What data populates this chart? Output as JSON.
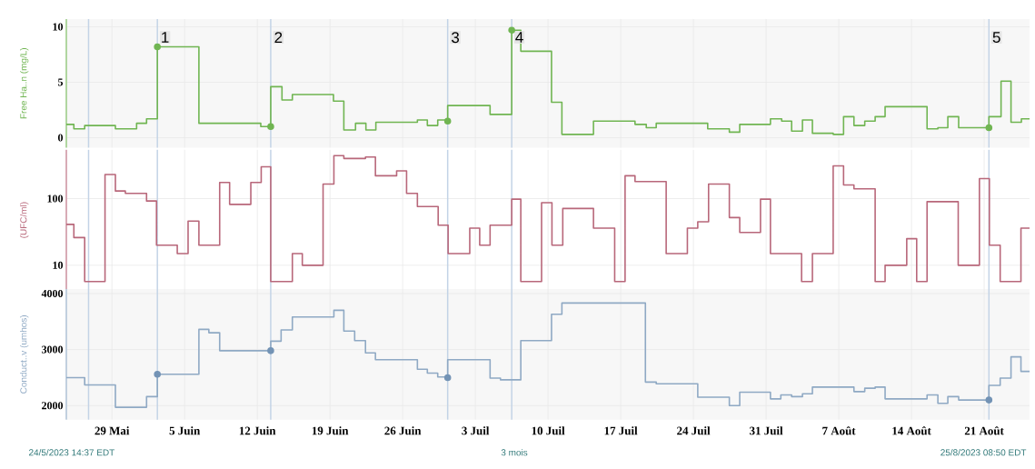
{
  "chart_data": [
    {
      "type": "step",
      "ylabel": "Free Ha..n (mg/L)",
      "xlim": [
        "2023-05-24T14:37",
        "2023-08-25T08:50"
      ],
      "ylim": [
        -0.9,
        10.7
      ],
      "yticks": [
        0,
        5,
        10
      ],
      "grid": true,
      "tick_labels": "y",
      "xticks": [
        {
          "value": "2023-05-29",
          "label": null
        },
        {
          "value": "2023-06-05",
          "label": null
        },
        {
          "value": "2023-06-12",
          "label": null
        },
        {
          "value": "2023-06-19",
          "label": null
        },
        {
          "value": "2023-06-26",
          "label": null
        },
        {
          "value": "2023-07-03",
          "label": null
        },
        {
          "value": "2023-07-10",
          "label": null
        },
        {
          "value": "2023-07-17",
          "label": null
        },
        {
          "value": "2023-07-24",
          "label": null
        },
        {
          "value": "2023-07-31",
          "label": null
        },
        {
          "value": "2023-08-07",
          "label": null
        },
        {
          "value": "2023-08-14",
          "label": null
        },
        {
          "value": "2023-08-21",
          "label": null
        }
      ],
      "ref_lines": [
        {
          "axis": "x",
          "value": "2023-05-26T18:00",
          "color": "#c3d3e6"
        },
        {
          "axis": "x",
          "value": "2023-06-02T09:00",
          "label": "1",
          "color": "#c3d3e6"
        },
        {
          "axis": "x",
          "value": "2023-06-13T07:00",
          "label": "2",
          "color": "#c3d3e6"
        },
        {
          "axis": "x",
          "value": "2023-06-30T08:00",
          "label": "3",
          "color": "#c3d3e6"
        },
        {
          "axis": "x",
          "value": "2023-07-06T12:00",
          "label": "4",
          "color": "#c3d3e6"
        },
        {
          "axis": "x",
          "value": "2023-08-21T11:00",
          "label": "5",
          "color": "#c3d3e6"
        }
      ],
      "series": [
        {
          "color": "#70b552",
          "x": [
            "2023-05-24T14:37",
            "2023-05-25T08:00",
            "2023-05-26T09:00",
            "2023-05-29T08:00",
            "2023-05-31T09:00",
            "2023-06-01T08:00",
            "2023-06-02T09:00",
            "2023-06-06T09:00",
            "2023-06-12T08:00",
            "2023-06-13T07:00",
            "2023-06-14T09:00",
            "2023-06-15T09:00",
            "2023-06-19T08:00",
            "2023-06-20T08:00",
            "2023-06-21T11:00",
            "2023-06-22T11:00",
            "2023-06-23T10:00",
            "2023-06-27T10:00",
            "2023-06-28T09:00",
            "2023-06-29T09:00",
            "2023-06-30T08:00",
            "2023-07-04T10:00",
            "2023-07-06T12:00",
            "2023-07-07T09:00",
            "2023-07-10T08:00",
            "2023-07-11T08:00",
            "2023-07-14T09:00",
            "2023-07-18T09:00",
            "2023-07-19T11:00",
            "2023-07-20T10:00",
            "2023-07-25T09:00",
            "2023-07-27T11:00",
            "2023-07-28T11:00",
            "2023-07-31T10:00",
            "2023-08-01T12:00",
            "2023-08-02T11:00",
            "2023-08-03T12:00",
            "2023-08-04T11:00",
            "2023-08-06T11:00",
            "2023-08-07T11:00",
            "2023-08-08T11:00",
            "2023-08-09T12:00",
            "2023-08-10T12:00",
            "2023-08-11T11:00",
            "2023-08-15T12:00",
            "2023-08-16T13:00",
            "2023-08-17T12:00",
            "2023-08-18T13:00",
            "2023-08-21T11:00",
            "2023-08-22T15:00",
            "2023-08-23T14:00",
            "2023-08-24T14:00",
            "2023-08-25T08:50"
          ],
          "values": [
            1.2,
            0.8,
            1.1,
            0.8,
            1.3,
            1.7,
            8.2,
            1.3,
            1.0,
            4.6,
            3.4,
            3.9,
            3.3,
            0.7,
            1.3,
            0.7,
            1.4,
            1.6,
            1.1,
            1.6,
            2.9,
            2.1,
            9.7,
            7.8,
            3.2,
            0.3,
            1.5,
            1.2,
            0.9,
            1.3,
            0.8,
            0.5,
            1.2,
            1.7,
            1.5,
            0.6,
            1.6,
            0.4,
            0.3,
            1.9,
            1.1,
            1.5,
            1.9,
            2.8,
            0.8,
            0.9,
            1.9,
            0.9,
            1.9,
            5.1,
            1.4,
            1.7,
            1.7
          ]
        },
        {
          "type": "scatter",
          "marker": "circle",
          "color": "#70b552",
          "x": [
            "2023-06-02T09:00",
            "2023-06-13T07:00",
            "2023-06-30T08:00",
            "2023-07-06T12:00",
            "2023-08-21T11:00"
          ],
          "values": [
            8.2,
            1.0,
            1.5,
            9.7,
            0.9
          ]
        }
      ]
    },
    {
      "type": "step",
      "ylabel": "(UFC/ml)",
      "xlim": [
        "2023-05-24T14:37",
        "2023-08-25T08:50"
      ],
      "ylim": [
        4.2,
        540
      ],
      "log": "y",
      "yticks": [
        10,
        100
      ],
      "grid": true,
      "tick_labels": "y",
      "xticks": [
        {
          "value": "2023-05-29",
          "label": null
        },
        {
          "value": "2023-06-05",
          "label": null
        },
        {
          "value": "2023-06-12",
          "label": null
        },
        {
          "value": "2023-06-19",
          "label": null
        },
        {
          "value": "2023-06-26",
          "label": null
        },
        {
          "value": "2023-07-03",
          "label": null
        },
        {
          "value": "2023-07-10",
          "label": null
        },
        {
          "value": "2023-07-17",
          "label": null
        },
        {
          "value": "2023-07-24",
          "label": null
        },
        {
          "value": "2023-07-31",
          "label": null
        },
        {
          "value": "2023-08-07",
          "label": null
        },
        {
          "value": "2023-08-14",
          "label": null
        },
        {
          "value": "2023-08-21",
          "label": null
        }
      ],
      "ref_lines": [
        {
          "axis": "x",
          "value": "2023-05-26T18:00",
          "color": "#c3d3e6"
        },
        {
          "axis": "x",
          "value": "2023-06-02T09:00",
          "color": "#c3d3e6"
        },
        {
          "axis": "x",
          "value": "2023-06-13T07:00",
          "color": "#c3d3e6"
        },
        {
          "axis": "x",
          "value": "2023-06-30T08:00",
          "color": "#c3d3e6"
        },
        {
          "axis": "x",
          "value": "2023-07-06T12:00",
          "color": "#c3d3e6"
        },
        {
          "axis": "x",
          "value": "2023-08-21T11:00",
          "color": "#c3d3e6"
        }
      ],
      "series": [
        {
          "color": "#b8677a",
          "x": [
            "2023-05-24T14:37",
            "2023-05-25T08:00",
            "2023-05-26T09:00",
            "2023-05-28T08:00",
            "2023-05-29T08:00",
            "2023-05-30T07:00",
            "2023-06-01T08:00",
            "2023-06-02T07:00",
            "2023-06-04T07:00",
            "2023-06-05T08:00",
            "2023-06-06T09:00",
            "2023-06-08T09:00",
            "2023-06-09T08:00",
            "2023-06-11T09:00",
            "2023-06-12T09:00",
            "2023-06-13T07:00",
            "2023-06-15T09:00",
            "2023-06-16T08:00",
            "2023-06-18T08:00",
            "2023-06-19T09:00",
            "2023-06-20T08:00",
            "2023-06-22T10:00",
            "2023-06-23T09:00",
            "2023-06-25T10:00",
            "2023-06-26T09:00",
            "2023-06-27T10:00",
            "2023-06-29T10:00",
            "2023-06-30T09:00",
            "2023-07-02T11:00",
            "2023-07-03T10:00",
            "2023-07-04T10:00",
            "2023-07-06T12:00",
            "2023-07-07T09:00",
            "2023-07-09T09:00",
            "2023-07-10T09:00",
            "2023-07-11T10:00",
            "2023-07-14T09:00",
            "2023-07-16T10:00",
            "2023-07-17T10:00",
            "2023-07-18T09:00",
            "2023-07-21T09:00",
            "2023-07-23T10:00",
            "2023-07-24T10:00",
            "2023-07-25T11:00",
            "2023-07-27T11:00",
            "2023-07-28T11:00",
            "2023-07-30T11:00",
            "2023-07-31T10:00",
            "2023-08-03T10:00",
            "2023-08-04T11:00",
            "2023-08-06T11:00",
            "2023-08-07T11:00",
            "2023-08-08T11:00",
            "2023-08-10T12:00",
            "2023-08-11T11:00",
            "2023-08-13T13:00",
            "2023-08-14T12:00",
            "2023-08-15T12:00",
            "2023-08-18T12:00",
            "2023-08-20T13:00",
            "2023-08-21T12:00",
            "2023-08-22T13:00",
            "2023-08-24T13:00",
            "2023-08-25T08:50"
          ],
          "values": [
            41,
            26,
            5.7,
            230,
            130,
            120,
            92,
            20,
            15,
            46,
            20,
            175,
            82,
            175,
            300,
            5.7,
            15,
            10,
            165,
            440,
            400,
            420,
            220,
            260,
            120,
            76,
            40,
            15,
            36,
            20,
            40,
            98,
            5.7,
            87,
            20,
            71,
            36,
            5.7,
            220,
            180,
            15,
            36,
            45,
            165,
            52,
            31,
            98,
            15,
            5.7,
            15,
            310,
            160,
            140,
            5.7,
            10,
            25,
            5.7,
            90,
            10,
            200,
            20,
            5.7,
            36,
            36
          ]
        }
      ]
    },
    {
      "type": "step",
      "ylabel": "Conduct..v (umhos)",
      "xlim": [
        "2023-05-24T14:37",
        "2023-08-25T08:50"
      ],
      "ylim": [
        1750,
        4080
      ],
      "yticks": [
        2000,
        3000,
        4000
      ],
      "grid": true,
      "xticks": [
        {
          "value": "2023-05-29",
          "label": "29 Mai"
        },
        {
          "value": "2023-06-05",
          "label": "5 Juin"
        },
        {
          "value": "2023-06-12",
          "label": "12 Juin"
        },
        {
          "value": "2023-06-19",
          "label": "19 Juin"
        },
        {
          "value": "2023-06-26",
          "label": "26 Juin"
        },
        {
          "value": "2023-07-03",
          "label": "3 Juil"
        },
        {
          "value": "2023-07-10",
          "label": "10 Juil"
        },
        {
          "value": "2023-07-17",
          "label": "17 Juil"
        },
        {
          "value": "2023-07-24",
          "label": "24 Juil"
        },
        {
          "value": "2023-07-31",
          "label": "31 Juil"
        },
        {
          "value": "2023-08-07",
          "label": "7 Août"
        },
        {
          "value": "2023-08-14",
          "label": "14 Août"
        },
        {
          "value": "2023-08-21",
          "label": "21 Août"
        }
      ],
      "ref_lines": [
        {
          "axis": "x",
          "value": "2023-05-26T18:00",
          "color": "#c3d3e6"
        },
        {
          "axis": "x",
          "value": "2023-06-02T09:00",
          "color": "#c3d3e6"
        },
        {
          "axis": "x",
          "value": "2023-06-13T07:00",
          "color": "#c3d3e6"
        },
        {
          "axis": "x",
          "value": "2023-06-30T08:00",
          "color": "#c3d3e6"
        },
        {
          "axis": "x",
          "value": "2023-07-06T12:00",
          "color": "#c3d3e6"
        },
        {
          "axis": "x",
          "value": "2023-08-21T11:00",
          "color": "#c3d3e6"
        }
      ],
      "annotations": [
        "24/5/2023 14:37 EDT",
        "3 mois",
        "25/8/2023 08:50 EDT"
      ],
      "series": [
        {
          "color": "#8fa9c4",
          "x": [
            "2023-05-24T14:37",
            "2023-05-26T09:00",
            "2023-05-29T08:00",
            "2023-06-01T08:00",
            "2023-06-02T09:00",
            "2023-06-06T09:00",
            "2023-06-07T08:00",
            "2023-06-08T09:00",
            "2023-06-13T07:00",
            "2023-06-14T07:00",
            "2023-06-15T09:00",
            "2023-06-19T09:00",
            "2023-06-20T08:00",
            "2023-06-21T09:00",
            "2023-06-22T10:00",
            "2023-06-23T09:00",
            "2023-06-27T10:00",
            "2023-06-28T09:00",
            "2023-06-29T09:00",
            "2023-06-30T08:00",
            "2023-07-04T10:00",
            "2023-07-05T10:00",
            "2023-07-07T09:00",
            "2023-07-10T08:00",
            "2023-07-11T08:00",
            "2023-07-19T09:00",
            "2023-07-20T10:00",
            "2023-07-24T10:00",
            "2023-07-27T11:00",
            "2023-07-28T11:00",
            "2023-07-31T10:00",
            "2023-08-01T10:00",
            "2023-08-02T11:00",
            "2023-08-03T12:00",
            "2023-08-04T11:00",
            "2023-08-08T11:00",
            "2023-08-09T12:00",
            "2023-08-10T12:00",
            "2023-08-11T11:00",
            "2023-08-15T12:00",
            "2023-08-16T13:00",
            "2023-08-17T12:00",
            "2023-08-18T13:00",
            "2023-08-21T11:00",
            "2023-08-22T13:00",
            "2023-08-23T14:00",
            "2023-08-24T13:00",
            "2023-08-25T08:50"
          ],
          "values": [
            2500,
            2370,
            1970,
            2160,
            2560,
            3360,
            3300,
            2980,
            3150,
            3350,
            3580,
            3700,
            3330,
            3160,
            2940,
            2820,
            2650,
            2580,
            2510,
            2820,
            2490,
            2460,
            3160,
            3630,
            3830,
            2420,
            2390,
            2150,
            2000,
            2240,
            2120,
            2190,
            2160,
            2210,
            2330,
            2250,
            2310,
            2330,
            2120,
            2190,
            2040,
            2160,
            2100,
            2360,
            2490,
            2870,
            2610,
            2610
          ]
        },
        {
          "type": "scatter",
          "marker": "circle",
          "color": "#7393b5",
          "x": [
            "2023-06-02T09:00",
            "2023-06-13T07:00",
            "2023-06-30T08:00",
            "2023-08-21T11:00"
          ],
          "values": [
            2560,
            2980,
            2500,
            2100
          ]
        }
      ]
    }
  ]
}
